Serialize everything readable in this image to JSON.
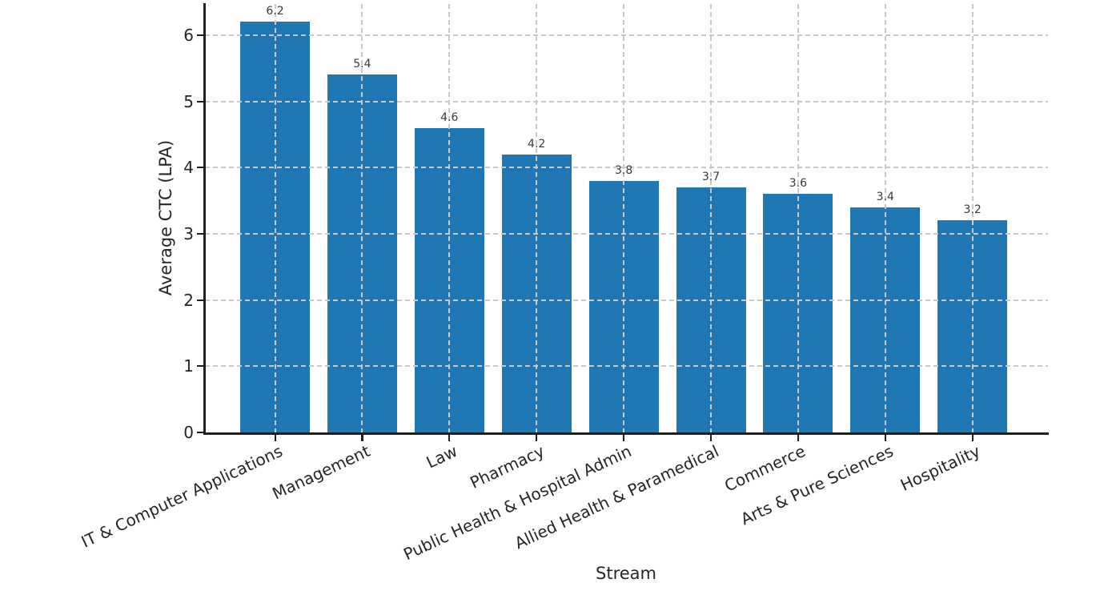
{
  "chart_data": {
    "type": "bar",
    "title": "",
    "xlabel": "Stream",
    "ylabel": "Average CTC (LPA)",
    "categories": [
      "IT & Computer Applications",
      "Management",
      "Law",
      "Pharmacy",
      "Public Health & Hospital Admin",
      "Allied Health & Paramedical",
      "Commerce",
      "Arts & Pure Sciences",
      "Hospitality"
    ],
    "values": [
      6.2,
      5.4,
      4.6,
      4.2,
      3.8,
      3.7,
      3.6,
      3.4,
      3.2
    ],
    "value_labels": [
      "6.2",
      "5.4",
      "4.6",
      "4.2",
      "3.8",
      "3.7",
      "3.6",
      "3.4",
      "3.2"
    ],
    "yticks": [
      0,
      1,
      2,
      3,
      4,
      5,
      6
    ],
    "ylim": [
      0,
      6.47
    ],
    "bar_color": "#1f77b4",
    "grid_color": "#c9c9c9",
    "axis_color": "#1f1f1f",
    "text_color": "#262626",
    "grid": "dashed, both axes, drawn above bars",
    "legend": "none",
    "xtick_rotation_deg": 25
  }
}
